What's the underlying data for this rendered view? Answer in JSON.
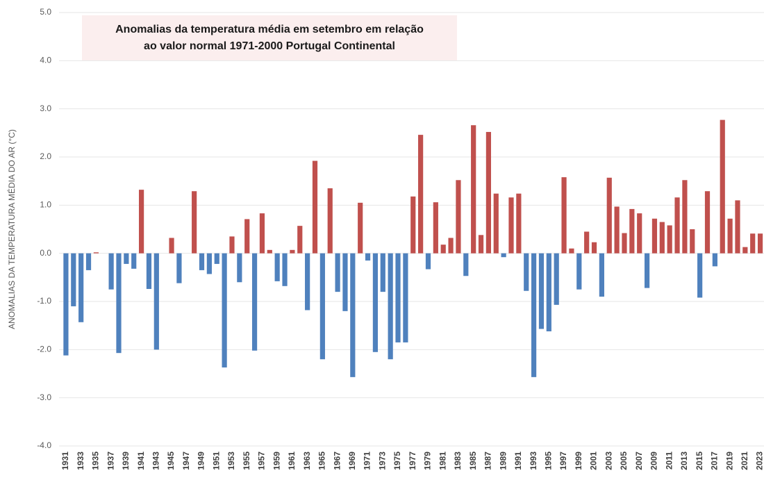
{
  "chart_data": {
    "type": "bar",
    "title": [
      "Anomalias da temperatura média em setembro em relação",
      "ao valor normal 1971-2000 Portugal Continental"
    ],
    "y_label": "ANOMALIAS DA TEMPERATURA MÉDIA DO AR (°C)",
    "categories": [
      "1931",
      null,
      "1933",
      null,
      "1935",
      null,
      "1937",
      null,
      "1939",
      null,
      "1941",
      null,
      "1943",
      null,
      "1945",
      null,
      "1947",
      null,
      "1949",
      null,
      "1951",
      null,
      "1953",
      null,
      "1955",
      null,
      "1957",
      null,
      "1959",
      null,
      "1961",
      null,
      "1963",
      null,
      "1965",
      null,
      "1967",
      null,
      "1969",
      null,
      "1971",
      null,
      "1973",
      null,
      "1975",
      null,
      "1977",
      null,
      "1979",
      null,
      "1981",
      null,
      "1983",
      null,
      "1985",
      null,
      "1987",
      null,
      "1989",
      null,
      "1991",
      null,
      "1993",
      null,
      "1995",
      null,
      "1997",
      null,
      "1999",
      null,
      "2001",
      null,
      "2003",
      null,
      "2005",
      null,
      "2007",
      null,
      "2009",
      null,
      "2011",
      null,
      "2013",
      null,
      "2015",
      null,
      "2017",
      null,
      "2019",
      null,
      "2021",
      null,
      "2023"
    ],
    "values": [
      -2.12,
      -1.1,
      -1.43,
      -0.35,
      0.02,
      0,
      -0.75,
      -2.07,
      -0.22,
      -0.32,
      1.32,
      -0.74,
      -2.0,
      0,
      0.32,
      -0.62,
      0,
      1.29,
      -0.35,
      -0.43,
      -0.22,
      -2.37,
      0.35,
      -0.6,
      0.71,
      -2.02,
      0.83,
      0.07,
      -0.58,
      -0.68,
      0.07,
      0.57,
      -1.18,
      1.92,
      -2.2,
      1.35,
      -0.8,
      -1.2,
      -2.57,
      1.05,
      -0.15,
      -2.05,
      -0.8,
      -2.2,
      -1.85,
      -1.85,
      1.18,
      2.46,
      -0.33,
      1.06,
      0.18,
      0.32,
      1.52,
      -0.47,
      2.66,
      0.38,
      2.52,
      1.24,
      -0.08,
      1.16,
      1.24,
      -0.78,
      -2.57,
      -1.57,
      -1.62,
      -1.07,
      1.58,
      0.1,
      -0.75,
      0.45,
      0.23,
      -0.9,
      1.57,
      0.97,
      0.42,
      0.92,
      0.83,
      -0.72,
      0.72,
      0.65,
      0.58,
      1.16,
      1.52,
      0.5,
      -0.92,
      1.29,
      -0.27,
      2.77,
      0.72,
      1.1,
      0.13,
      0.41,
      0.41
    ],
    "colors": {
      "positive": "#c0504d",
      "negative": "#4f81bd"
    },
    "ylim": [
      -4,
      5
    ],
    "yticks": [
      {
        "value": -4,
        "label": "-4.0"
      },
      {
        "value": -3,
        "label": "-3.0"
      },
      {
        "value": -2,
        "label": "-2.0"
      },
      {
        "value": -1,
        "label": "-1.0"
      },
      {
        "value": 0,
        "label": "0.0"
      },
      {
        "value": 1,
        "label": "1.0"
      },
      {
        "value": 2,
        "label": "2.0"
      },
      {
        "value": 3,
        "label": "3.0"
      },
      {
        "value": 4,
        "label": "4.0"
      },
      {
        "value": 5,
        "label": "5.0"
      }
    ],
    "grid": true
  }
}
